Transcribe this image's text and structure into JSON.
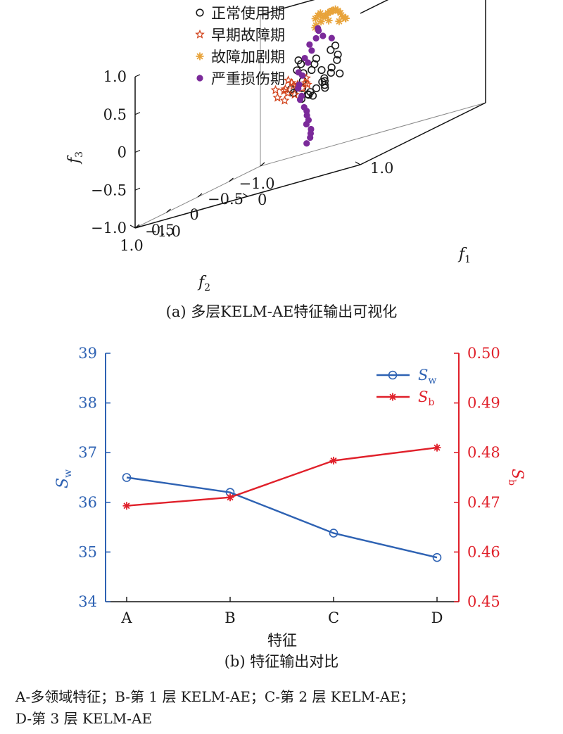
{
  "captions": {
    "a": "(a) 多层KELM-AE特征输出可视化",
    "b": "(b) 特征输出对比"
  },
  "footnote": {
    "line1": "A-多领域特征；B-第 1 层 KELM-AE；C-第 2 层 KELM-AE；",
    "line2": "D-第 3 层 KELM-AE"
  },
  "colors": {
    "normal": "#1a1a1a",
    "early": "#d2451e",
    "aggravated": "#e8a33a",
    "severe": "#7b2a9a",
    "sw": "#2e62b3",
    "sb": "#e0202a"
  },
  "chart_data": [
    {
      "type": "scatter",
      "projection": "3d",
      "axes": {
        "f1": {
          "label": "f",
          "sub": "1",
          "range": [
            -1.0,
            1.0
          ],
          "ticks": [
            "1.0",
            "0",
            "−1.0"
          ]
        },
        "f2": {
          "label": "f",
          "sub": "2",
          "range": [
            -1.0,
            1.0
          ],
          "ticks": [
            "1.0",
            "0.5",
            "0",
            "−0.5",
            "−1.0"
          ]
        },
        "f3": {
          "label": "f",
          "sub": "3",
          "range": [
            -1.0,
            1.0
          ],
          "ticks": [
            "1.0",
            "0.5",
            "0",
            "−0.5",
            "−1.0"
          ]
        }
      },
      "legend_position": "top-left",
      "series": [
        {
          "name": "正常使用期",
          "marker": "circle-open",
          "points": [
            [
              0.3,
              0.5,
              0.0
            ],
            [
              0.25,
              0.45,
              0.05
            ],
            [
              0.2,
              0.4,
              0.02
            ],
            [
              0.35,
              0.4,
              0.08
            ],
            [
              0.3,
              0.35,
              0.12
            ],
            [
              0.22,
              0.3,
              0.05
            ],
            [
              0.18,
              0.35,
              0.0
            ],
            [
              0.28,
              0.28,
              0.15
            ],
            [
              0.35,
              0.3,
              0.2
            ],
            [
              0.4,
              0.25,
              0.15
            ],
            [
              0.25,
              0.22,
              0.1
            ],
            [
              0.3,
              0.2,
              0.25
            ],
            [
              0.15,
              0.25,
              0.3
            ],
            [
              0.2,
              0.18,
              0.25
            ],
            [
              0.1,
              0.3,
              0.2
            ],
            [
              0.12,
              0.15,
              0.35
            ],
            [
              0.05,
              0.2,
              0.28
            ],
            [
              0.15,
              0.4,
              0.12
            ],
            [
              0.2,
              0.5,
              0.0
            ],
            [
              0.38,
              0.45,
              0.05
            ],
            [
              0.0,
              0.15,
              0.4
            ],
            [
              -0.05,
              0.1,
              0.45
            ],
            [
              0.08,
              0.05,
              0.4
            ],
            [
              0.02,
              0.25,
              0.35
            ],
            [
              0.25,
              0.05,
              0.5
            ],
            [
              0.32,
              0.15,
              0.32
            ],
            [
              0.18,
              0.0,
              0.45
            ],
            [
              0.1,
              0.45,
              0.1
            ],
            [
              0.05,
              0.4,
              0.15
            ],
            [
              0.3,
              0.1,
              0.38
            ]
          ]
        },
        {
          "name": "早期故障期",
          "marker": "star-open",
          "points": [
            [
              0.3,
              0.9,
              0.2
            ],
            [
              0.25,
              0.85,
              0.25
            ],
            [
              0.35,
              0.88,
              0.15
            ],
            [
              0.28,
              0.8,
              0.3
            ],
            [
              0.4,
              0.85,
              0.2
            ],
            [
              0.22,
              0.92,
              0.18
            ],
            [
              0.32,
              0.78,
              0.25
            ],
            [
              0.38,
              0.75,
              0.3
            ],
            [
              0.18,
              0.88,
              0.28
            ],
            [
              0.26,
              0.82,
              0.35
            ],
            [
              0.42,
              0.8,
              0.22
            ],
            [
              0.3,
              0.95,
              0.12
            ],
            [
              0.36,
              0.92,
              0.28
            ],
            [
              0.2,
              0.78,
              0.22
            ],
            [
              0.45,
              0.88,
              0.26
            ]
          ]
        },
        {
          "name": "故障加剧期",
          "marker": "asterisk",
          "points": [
            [
              0.1,
              -0.3,
              0.85
            ],
            [
              0.05,
              -0.35,
              0.88
            ],
            [
              0.0,
              -0.4,
              0.9
            ],
            [
              -0.05,
              -0.45,
              0.88
            ],
            [
              -0.1,
              -0.5,
              0.87
            ],
            [
              -0.15,
              -0.55,
              0.85
            ],
            [
              -0.2,
              -0.6,
              0.82
            ],
            [
              -0.25,
              -0.65,
              0.8
            ],
            [
              -0.3,
              -0.7,
              0.85
            ],
            [
              0.15,
              -0.25,
              0.8
            ],
            [
              0.2,
              -0.2,
              0.78
            ],
            [
              0.05,
              -0.25,
              0.92
            ],
            [
              -0.1,
              -0.35,
              0.8
            ],
            [
              -0.2,
              -0.45,
              0.75
            ],
            [
              -0.35,
              -0.75,
              0.82
            ],
            [
              -0.4,
              -0.8,
              0.78
            ],
            [
              0.12,
              -0.35,
              0.75
            ],
            [
              -0.05,
              -0.55,
              0.7
            ],
            [
              -0.28,
              -0.58,
              0.7
            ],
            [
              0.08,
              -0.15,
              0.82
            ]
          ]
        },
        {
          "name": "严重损伤期",
          "marker": "circle-filled",
          "points": [
            [
              -0.4,
              -0.85,
              0.6
            ],
            [
              -0.45,
              -0.9,
              0.5
            ],
            [
              -0.5,
              -0.92,
              0.35
            ],
            [
              -0.55,
              -0.95,
              0.2
            ],
            [
              -0.6,
              -0.95,
              0.05
            ],
            [
              -0.62,
              -0.92,
              -0.1
            ],
            [
              -0.58,
              -0.88,
              -0.25
            ],
            [
              -0.5,
              -0.8,
              -0.35
            ],
            [
              -0.42,
              -0.7,
              -0.45
            ],
            [
              -0.35,
              -0.6,
              -0.5
            ],
            [
              -0.3,
              -0.55,
              -0.62
            ],
            [
              -0.28,
              -0.5,
              -0.72
            ],
            [
              -0.35,
              -0.75,
              0.65
            ],
            [
              -0.48,
              -0.85,
              0.45
            ],
            [
              -0.55,
              -0.9,
              0.28
            ],
            [
              -0.65,
              -0.98,
              0.1
            ],
            [
              -0.6,
              -0.9,
              -0.05
            ],
            [
              -0.55,
              -0.85,
              -0.2
            ],
            [
              -0.45,
              -0.75,
              -0.4
            ],
            [
              -0.38,
              -0.62,
              -0.55
            ],
            [
              -0.32,
              -0.58,
              -0.68
            ],
            [
              -0.3,
              -0.48,
              -0.78
            ],
            [
              -0.25,
              -0.65,
              0.55
            ],
            [
              -0.2,
              -0.7,
              0.48
            ]
          ]
        }
      ]
    },
    {
      "type": "line",
      "xlabel": "特征",
      "categories": [
        "A",
        "B",
        "C",
        "D"
      ],
      "y_left": {
        "label": "S",
        "sub": "w",
        "range": [
          34,
          39
        ],
        "ticks": [
          "34",
          "35",
          "36",
          "37",
          "38",
          "39"
        ]
      },
      "y_right": {
        "label": "S",
        "sub": "b",
        "range": [
          0.45,
          0.5
        ],
        "ticks": [
          "0.45",
          "0.46",
          "0.47",
          "0.48",
          "0.49",
          "0.50"
        ]
      },
      "legend_position": "top-right",
      "series": [
        {
          "name": "S",
          "sub": "w",
          "axis": "left",
          "marker": "circle-open",
          "values": [
            36.5,
            36.2,
            35.38,
            34.89
          ]
        },
        {
          "name": "S",
          "sub": "b",
          "axis": "right",
          "marker": "asterisk",
          "values": [
            0.4693,
            0.471,
            0.4784,
            0.481
          ]
        }
      ]
    }
  ]
}
